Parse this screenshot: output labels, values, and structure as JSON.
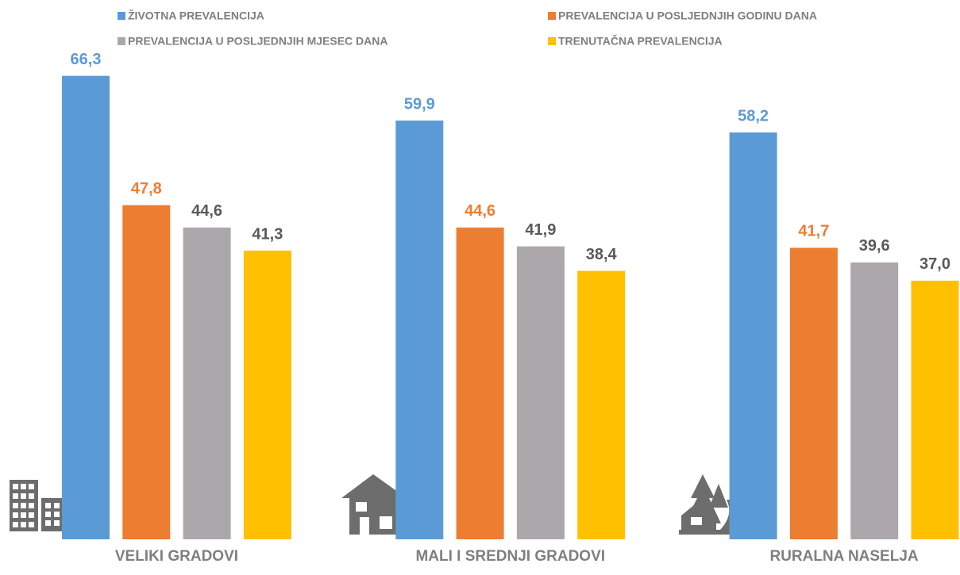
{
  "chart_data": {
    "type": "bar",
    "categories": [
      "VELIKI GRADOVI",
      "MALI I SREDNJI GRADOVI",
      "RURALNA NASELJA"
    ],
    "series": [
      {
        "name": "ŽIVOTNA PREVALENCIJA",
        "color": "#5b9bd5",
        "label_color": "#5b9bd5",
        "values": [
          66.3,
          59.9,
          58.2
        ],
        "value_labels": [
          "66,3",
          "59,9",
          "58,2"
        ]
      },
      {
        "name": "PREVALENCIJA U POSLJEDNJIH GODINU DANA",
        "color": "#ed7d31",
        "label_color": "#ed7d31",
        "values": [
          47.8,
          44.6,
          41.7
        ],
        "value_labels": [
          "47,8",
          "44,6",
          "41,7"
        ]
      },
      {
        "name": "PREVALENCIJA U POSLJEDNJIH MJESEC DANA",
        "color": "#aba7aa",
        "label_color": "#595959",
        "values": [
          44.6,
          41.9,
          39.6
        ],
        "value_labels": [
          "44,6",
          "41,9",
          "39,6"
        ]
      },
      {
        "name": "TRENUTAČNA PREVALENCIJA",
        "color": "#ffc000",
        "label_color": "#595959",
        "values": [
          41.3,
          38.4,
          37.0
        ],
        "value_labels": [
          "41,3",
          "38,4",
          "37,0"
        ]
      }
    ],
    "ylim": [
      0,
      70
    ]
  }
}
